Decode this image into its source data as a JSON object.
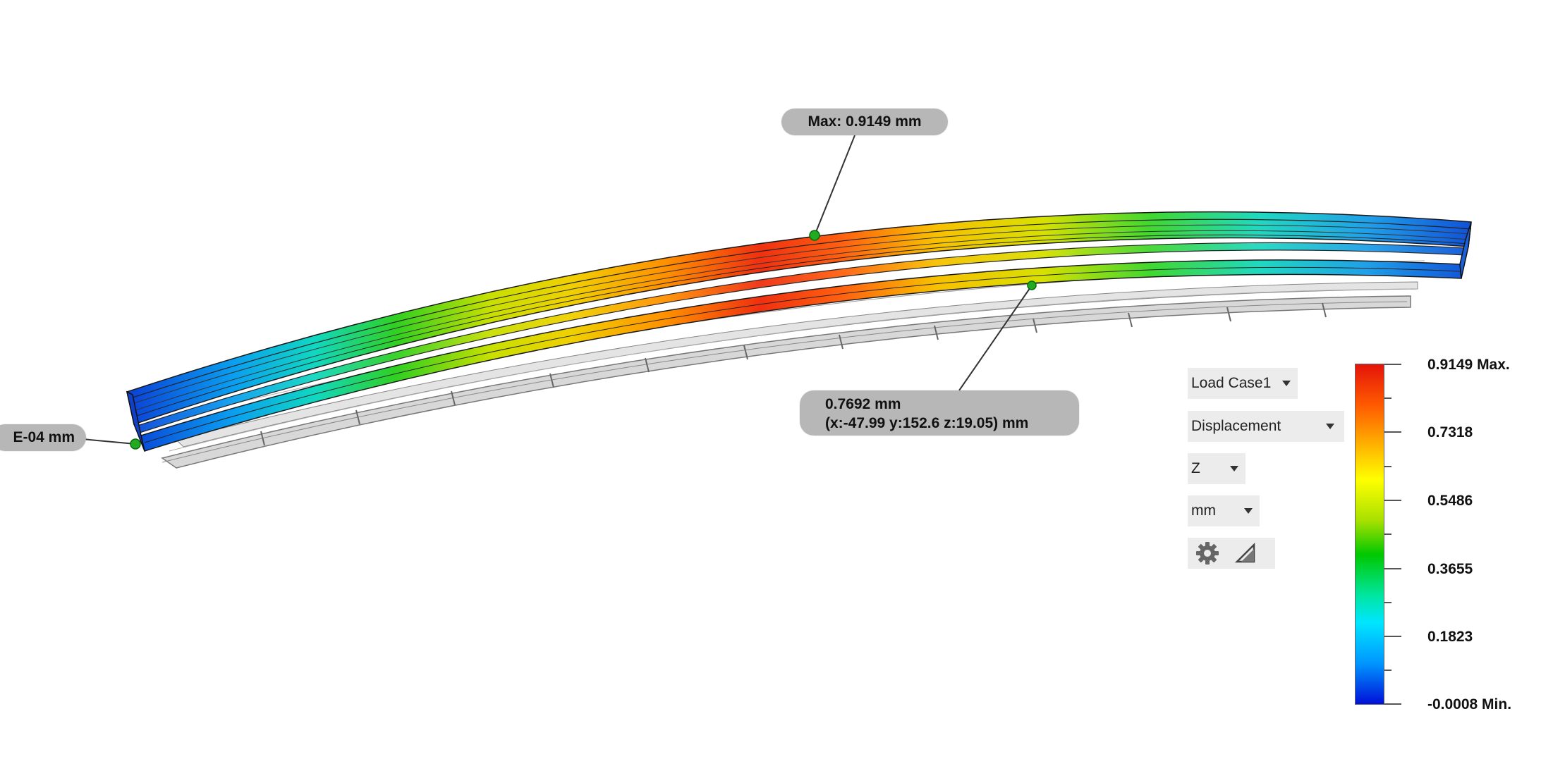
{
  "probes": {
    "max_label": "Max: 0.9149 mm",
    "min_label_visible": "E-04 mm",
    "point_value": "0.7692 mm",
    "point_coords": "(x:-47.99 y:152.6 z:19.05) mm"
  },
  "controls": {
    "load_case": "Load Case1",
    "result_type": "Displacement",
    "component": "Z",
    "unit": "mm",
    "settings_icon": "gear-icon",
    "probe_icon": "triangle-probe-icon"
  },
  "legend": {
    "labels": [
      "0.9149 Max.",
      "0.7318",
      "0.5486",
      "0.3655",
      "0.1823",
      "-0.0008 Min."
    ],
    "colors": [
      "#e4140a",
      "#ffa500",
      "#ffff00",
      "#00c800",
      "#00e6ff",
      "#0010d8"
    ]
  }
}
